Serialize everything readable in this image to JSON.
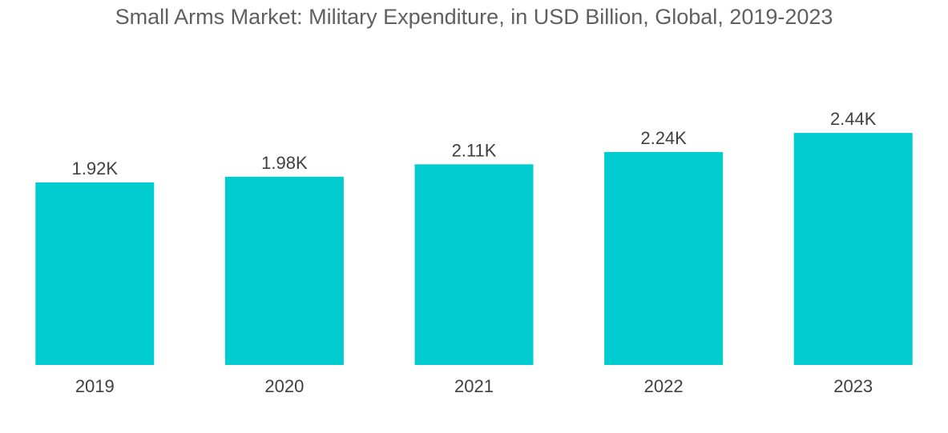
{
  "chart_data": {
    "type": "bar",
    "title": "Small Arms Market: Military Expenditure, in USD Billion, Global, 2019-2023",
    "categories": [
      "2019",
      "2020",
      "2021",
      "2022",
      "2023"
    ],
    "values": [
      1920,
      1980,
      2110,
      2240,
      2440
    ],
    "data_labels": [
      "1.92K",
      "1.98K",
      "2.11K",
      "2.24K",
      "2.44K"
    ],
    "xlabel": "",
    "ylabel": "",
    "ylim": [
      0,
      3000
    ],
    "grid": false,
    "legend": "none",
    "bar_color": "#00ccd0"
  }
}
